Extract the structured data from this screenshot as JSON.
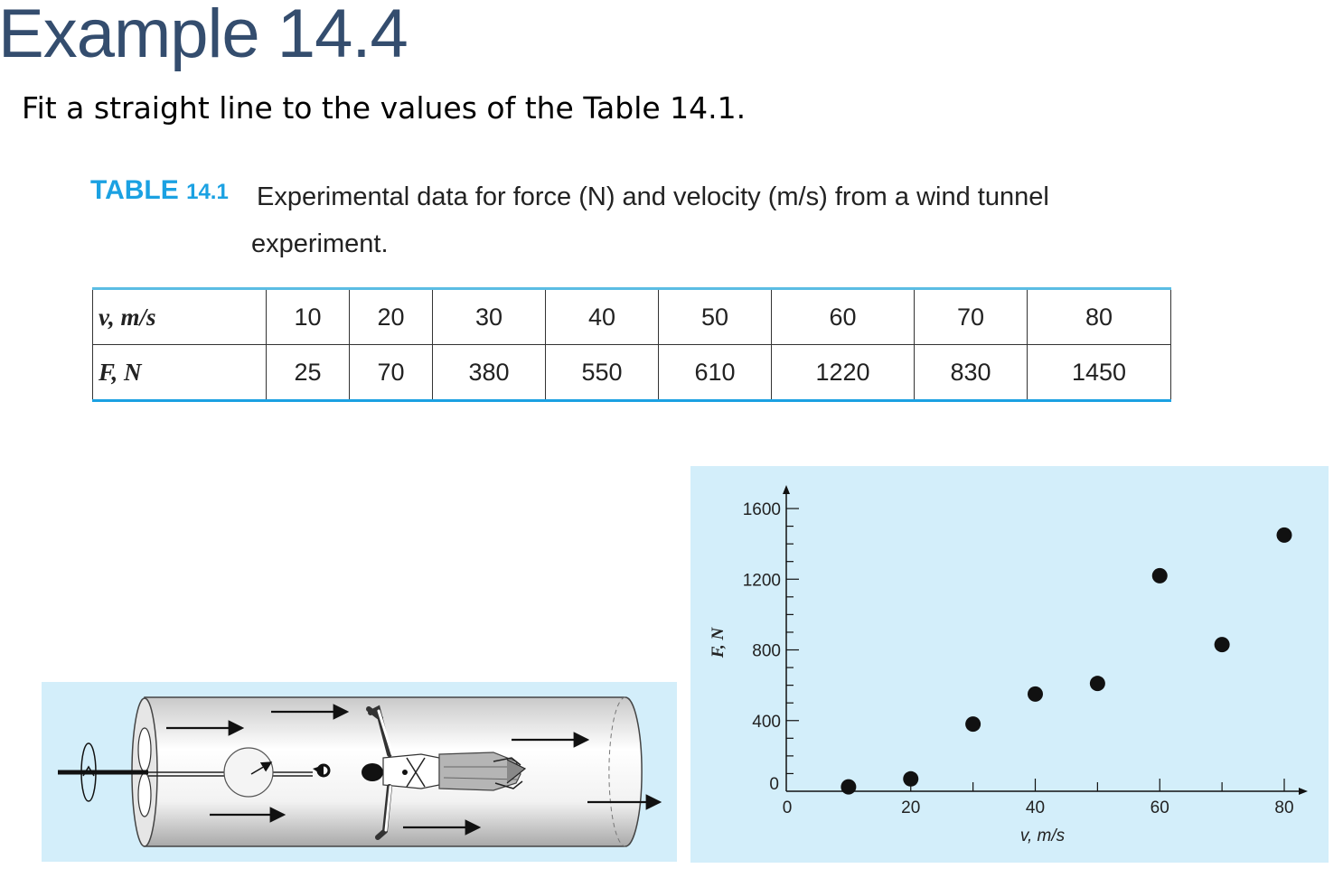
{
  "slide": {
    "title": "Example 14.4",
    "instruction": "Fit a straight line to the values of the Table 14.1."
  },
  "table": {
    "label": "TABLE",
    "number": "14.1",
    "caption": "Experimental data for force (N) and velocity (m/s) from a wind tunnel experiment.",
    "rows": [
      {
        "header": "v, m/s",
        "values": [
          "10",
          "20",
          "30",
          "40",
          "50",
          "60",
          "70",
          "80"
        ]
      },
      {
        "header": "F, N",
        "values": [
          "25",
          "70",
          "380",
          "550",
          "610",
          "1220",
          "830",
          "1450"
        ]
      }
    ]
  },
  "illustration": {
    "subject": "wind tunnel with suspended person",
    "background_color": "#d3eefa"
  },
  "chart_data": {
    "type": "scatter",
    "x": [
      10,
      20,
      30,
      40,
      50,
      60,
      70,
      80
    ],
    "y": [
      25,
      70,
      380,
      550,
      610,
      1220,
      830,
      1450
    ],
    "xlabel": "v, m/s",
    "ylabel": "F, N",
    "xlim": [
      0,
      80
    ],
    "ylim": [
      0,
      1600
    ],
    "xticks": [
      "0",
      "20",
      "40",
      "60",
      "80"
    ],
    "yticks": [
      "0",
      "400",
      "800",
      "1200",
      "1600"
    ],
    "grid": false,
    "background_color": "#d3eefa",
    "marker_color": "#111111"
  }
}
